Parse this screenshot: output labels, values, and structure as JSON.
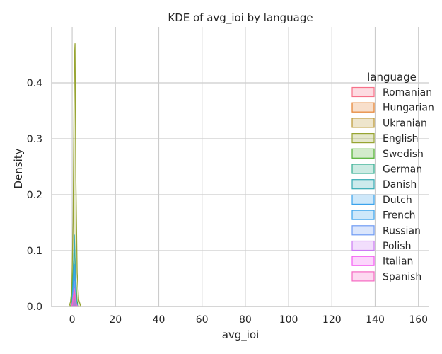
{
  "chart_data": {
    "type": "area",
    "title": "KDE of avg_ioi by language",
    "xlabel": "avg_ioi",
    "ylabel": "Density",
    "xlim": [
      -9.5,
      165
    ],
    "ylim": [
      0,
      0.5
    ],
    "xticks": [
      0,
      20,
      40,
      60,
      80,
      100,
      120,
      140,
      160
    ],
    "yticks": [
      0.0,
      0.1,
      0.2,
      0.3,
      0.4
    ],
    "ytick_labels": [
      "0.0",
      "0.1",
      "0.2",
      "0.3",
      "0.4"
    ],
    "grid": true,
    "legend_title": "language",
    "legend_position": "right",
    "series": [
      {
        "name": "Romanian",
        "color": "#f77189",
        "x": [
          -0.5,
          0.0,
          0.5,
          1.0,
          1.5,
          2.0,
          2.5
        ],
        "y": [
          0.0,
          0.004,
          0.022,
          0.03,
          0.014,
          0.002,
          0.0
        ]
      },
      {
        "name": "Hungarian",
        "color": "#e5802e",
        "x": [
          -0.4,
          0.1,
          0.6,
          1.1,
          1.6,
          2.1,
          2.6
        ],
        "y": [
          0.0,
          0.006,
          0.038,
          0.068,
          0.03,
          0.005,
          0.0
        ]
      },
      {
        "name": "Ukranian",
        "color": "#bb9832",
        "x": [
          -0.6,
          0.0,
          0.5,
          1.0,
          1.5,
          2.1,
          2.8
        ],
        "y": [
          0.0,
          0.005,
          0.03,
          0.05,
          0.022,
          0.004,
          0.0
        ]
      },
      {
        "name": "English",
        "color": "#97a431",
        "x": [
          -1.5,
          -0.8,
          -0.2,
          0.4,
          1.0,
          1.3,
          1.7,
          2.3,
          3.0,
          4.0
        ],
        "y": [
          0.0,
          0.008,
          0.03,
          0.15,
          0.44,
          0.47,
          0.23,
          0.06,
          0.012,
          0.0
        ]
      },
      {
        "name": "Swedish",
        "color": "#50b131",
        "x": [
          -0.8,
          -0.2,
          0.4,
          1.0,
          1.6,
          2.2,
          2.9
        ],
        "y": [
          0.0,
          0.01,
          0.06,
          0.11,
          0.055,
          0.01,
          0.0
        ]
      },
      {
        "name": "German",
        "color": "#34ae91",
        "x": [
          -0.6,
          0.0,
          0.5,
          1.0,
          1.5,
          2.1,
          2.8
        ],
        "y": [
          0.0,
          0.006,
          0.035,
          0.06,
          0.028,
          0.005,
          0.0
        ]
      },
      {
        "name": "Danish",
        "color": "#37abb4",
        "x": [
          -0.5,
          0.0,
          0.5,
          1.0,
          1.5,
          2.0,
          2.6
        ],
        "y": [
          0.0,
          0.008,
          0.06,
          0.128,
          0.055,
          0.008,
          0.0
        ]
      },
      {
        "name": "Dutch",
        "color": "#3ba3ec",
        "x": [
          -0.5,
          0.0,
          0.5,
          1.0,
          1.5,
          2.0,
          2.6
        ],
        "y": [
          0.0,
          0.006,
          0.04,
          0.075,
          0.032,
          0.005,
          0.0
        ]
      },
      {
        "name": "French",
        "color": "#3ba3ec",
        "x": [
          -0.5,
          0.0,
          0.5,
          1.0,
          1.5,
          2.0,
          2.6
        ],
        "y": [
          0.0,
          0.005,
          0.03,
          0.055,
          0.024,
          0.004,
          0.0
        ]
      },
      {
        "name": "Russian",
        "color": "#6e9bf4",
        "x": [
          -0.5,
          0.0,
          0.5,
          1.0,
          1.5,
          2.0,
          2.6
        ],
        "y": [
          0.0,
          0.004,
          0.025,
          0.045,
          0.02,
          0.003,
          0.0
        ]
      },
      {
        "name": "Polish",
        "color": "#cc7af4",
        "x": [
          -0.5,
          0.0,
          0.5,
          1.0,
          1.5,
          2.0,
          2.6
        ],
        "y": [
          0.0,
          0.003,
          0.018,
          0.032,
          0.015,
          0.002,
          0.0
        ]
      },
      {
        "name": "Italian",
        "color": "#f45cf2",
        "x": [
          -0.5,
          0.0,
          0.5,
          1.0,
          1.5,
          2.0,
          2.6
        ],
        "y": [
          0.0,
          0.003,
          0.015,
          0.026,
          0.012,
          0.002,
          0.0
        ]
      },
      {
        "name": "Spanish",
        "color": "#f668c2",
        "x": [
          -0.5,
          0.0,
          0.5,
          1.0,
          1.5,
          2.0,
          2.6
        ],
        "y": [
          0.0,
          0.003,
          0.016,
          0.028,
          0.013,
          0.002,
          0.0
        ]
      }
    ]
  }
}
